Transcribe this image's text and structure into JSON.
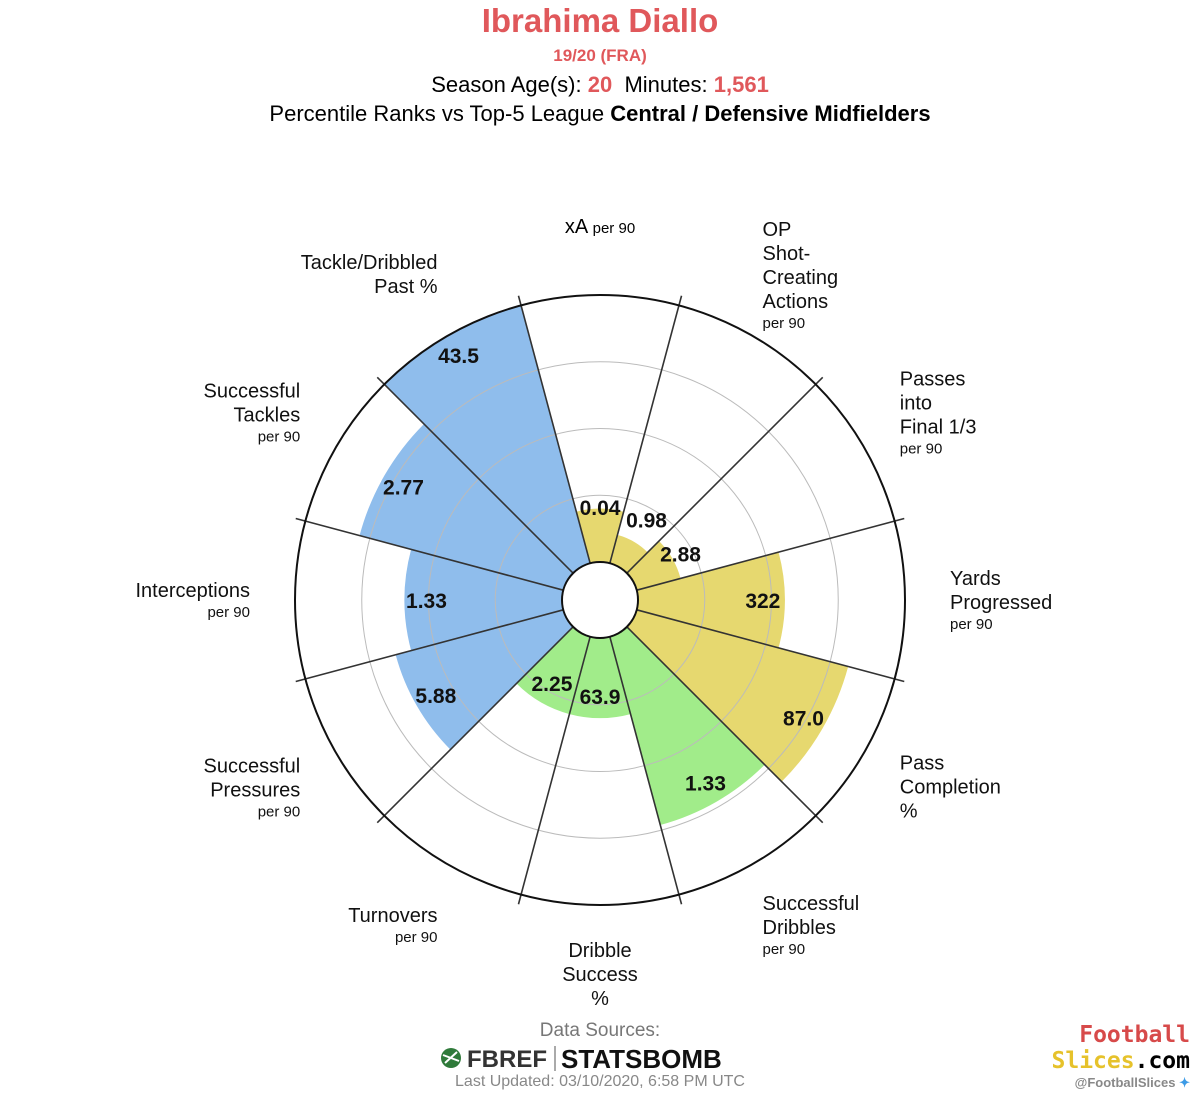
{
  "header": {
    "player_name": "Ibrahima Diallo",
    "season": "19/20 (FRA)",
    "age_label": "Season Age(s):",
    "age_value": "20",
    "minutes_label": "Minutes:",
    "minutes_value": "1,561",
    "comparison_prefix": "Percentile Ranks vs Top-5 League",
    "comparison_group": "Central / Defensive Midfielders"
  },
  "colors": {
    "title": "#e0585b",
    "attacking": "#e6d86f",
    "possession": "#a1ec8a",
    "defending": "#8fbdec",
    "grid": "#bbbbbb",
    "divider": "#333333"
  },
  "chart_data": {
    "type": "polar-bar",
    "scale": "percentile",
    "rlim": [
      0,
      100
    ],
    "segments": [
      {
        "label": [
          "xA"
        ],
        "unit": "per 90",
        "value": "0.04",
        "percentile": 20,
        "group": "attacking"
      },
      {
        "label": [
          "OP",
          "Shot-",
          "Creating",
          "Actions"
        ],
        "unit": "per 90",
        "value": "0.98",
        "percentile": 11,
        "group": "attacking"
      },
      {
        "label": [
          "Passes",
          "into",
          "Final 1/3"
        ],
        "unit": "per 90",
        "value": "2.88",
        "percentile": 17,
        "group": "attacking"
      },
      {
        "label": [
          "Yards",
          "Progressed"
        ],
        "unit": "per 90",
        "value": "322",
        "percentile": 55,
        "group": "attacking"
      },
      {
        "label": [
          "Pass",
          "Completion",
          "%"
        ],
        "unit": "",
        "value": "87.0",
        "percentile": 82,
        "group": "attacking"
      },
      {
        "label": [
          "Successful",
          "Dribbles"
        ],
        "unit": "per 90",
        "value": "1.33",
        "percentile": 73,
        "group": "possession"
      },
      {
        "label": [
          "Dribble",
          "Success",
          "%"
        ],
        "unit": "",
        "value": "63.9",
        "percentile": 30,
        "group": "possession"
      },
      {
        "label": [
          "Turnovers"
        ],
        "unit": "per 90",
        "value": "2.25",
        "percentile": 30,
        "group": "possession"
      },
      {
        "label": [
          "Successful",
          "Pressures"
        ],
        "unit": "per 90",
        "value": "5.88",
        "percentile": 65,
        "group": "defending"
      },
      {
        "label": [
          "Interceptions"
        ],
        "unit": "per 90",
        "value": "1.33",
        "percentile": 59,
        "group": "defending"
      },
      {
        "label": [
          "Successful",
          "Tackles"
        ],
        "unit": "per 90",
        "value": "2.77",
        "percentile": 79,
        "group": "defending"
      },
      {
        "label": [
          "Tackle/Dribbled",
          "Past %"
        ],
        "unit": "",
        "value": "43.5",
        "percentile": 100,
        "group": "defending"
      }
    ]
  },
  "footer": {
    "sources_label": "Data Sources:",
    "fbref_logo": "FBREF",
    "statsbomb_logo": "STATSBOMB",
    "last_updated": "Last Updated: 03/10/2020, 6:58 PM UTC",
    "brand_line1": "Football",
    "brand_line2_a": "Slices",
    "brand_line2_b": ".com",
    "brand_handle": "@FootballSlices"
  }
}
